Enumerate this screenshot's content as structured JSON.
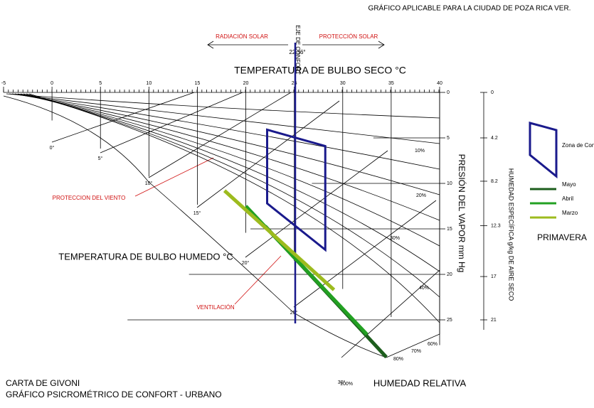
{
  "chart_data": {
    "type": "psychrometric",
    "title": "GRÁFICO APLICABLE PARA LA CIUDAD DE POZA RICA VER.",
    "subtitle": "CARTA DE GIVONI",
    "caption": "GRÁFICO PSICROMÉTRICO DE CONFORT - URBANO",
    "x_label": "TEMPERATURA DE BULBO SECO °C",
    "y_label": "PRESIÓN DEL VAPOR mm Hg",
    "y2_label": "HUMEDAD ESPECÍFICA g/kg DE AIRE SECO",
    "wet_bulb_label": "TEMPERATURA DE BULBO HUMEDO °C",
    "rh_label": "HUMEDAD RELATIVA",
    "xlim": [
      -5,
      40
    ],
    "xticks": [
      -5,
      0,
      5,
      10,
      15,
      20,
      25,
      30,
      35,
      40
    ],
    "ylim": [
      0,
      25
    ],
    "yticks": [
      0,
      5,
      10,
      15,
      20,
      25
    ],
    "y2lim": [
      0,
      21
    ],
    "y2ticks": [
      0,
      4.2,
      8.2,
      12.3,
      17,
      21
    ],
    "comfort_axis": {
      "label": "EJE DE CONFORT",
      "value_label": "22.36°"
    },
    "solar": {
      "left": "RADIACIÓN SOLAR",
      "right": "PROTECCIÓN SOLAR"
    },
    "strategies": [
      "PROTECCION DEL VIENTO",
      "VENTILACIÓN"
    ],
    "wet_bulb_ticks": [
      "0°",
      "5°",
      "10°",
      "15°",
      "20°",
      "25°",
      "30°"
    ],
    "rh_ticks": [
      "10%",
      "20%",
      "30%",
      "40%",
      "60%",
      "70%",
      "80%",
      "100%"
    ],
    "legend_title": "PRIMAVERA",
    "comfort_zone": {
      "name": "Zona de Confort",
      "color": "#1a1a8c",
      "x": [
        22.2,
        28.2,
        28.2,
        22.2
      ],
      "values": [
        4.1,
        5.9,
        17.3,
        12.2
      ]
    },
    "series": [
      {
        "name": "Mayo",
        "color": "#1d5e1d",
        "x": [
          22,
          34.5
        ],
        "values": [
          14.7,
          29.1
        ]
      },
      {
        "name": "Abril",
        "color": "#22a022",
        "x": [
          20,
          32.5
        ],
        "values": [
          12.5,
          26.6
        ]
      },
      {
        "name": "Marzo",
        "color": "#9dbb1e",
        "x": [
          17.8,
          29.1
        ],
        "values": [
          10.8,
          21.7
        ]
      }
    ]
  }
}
